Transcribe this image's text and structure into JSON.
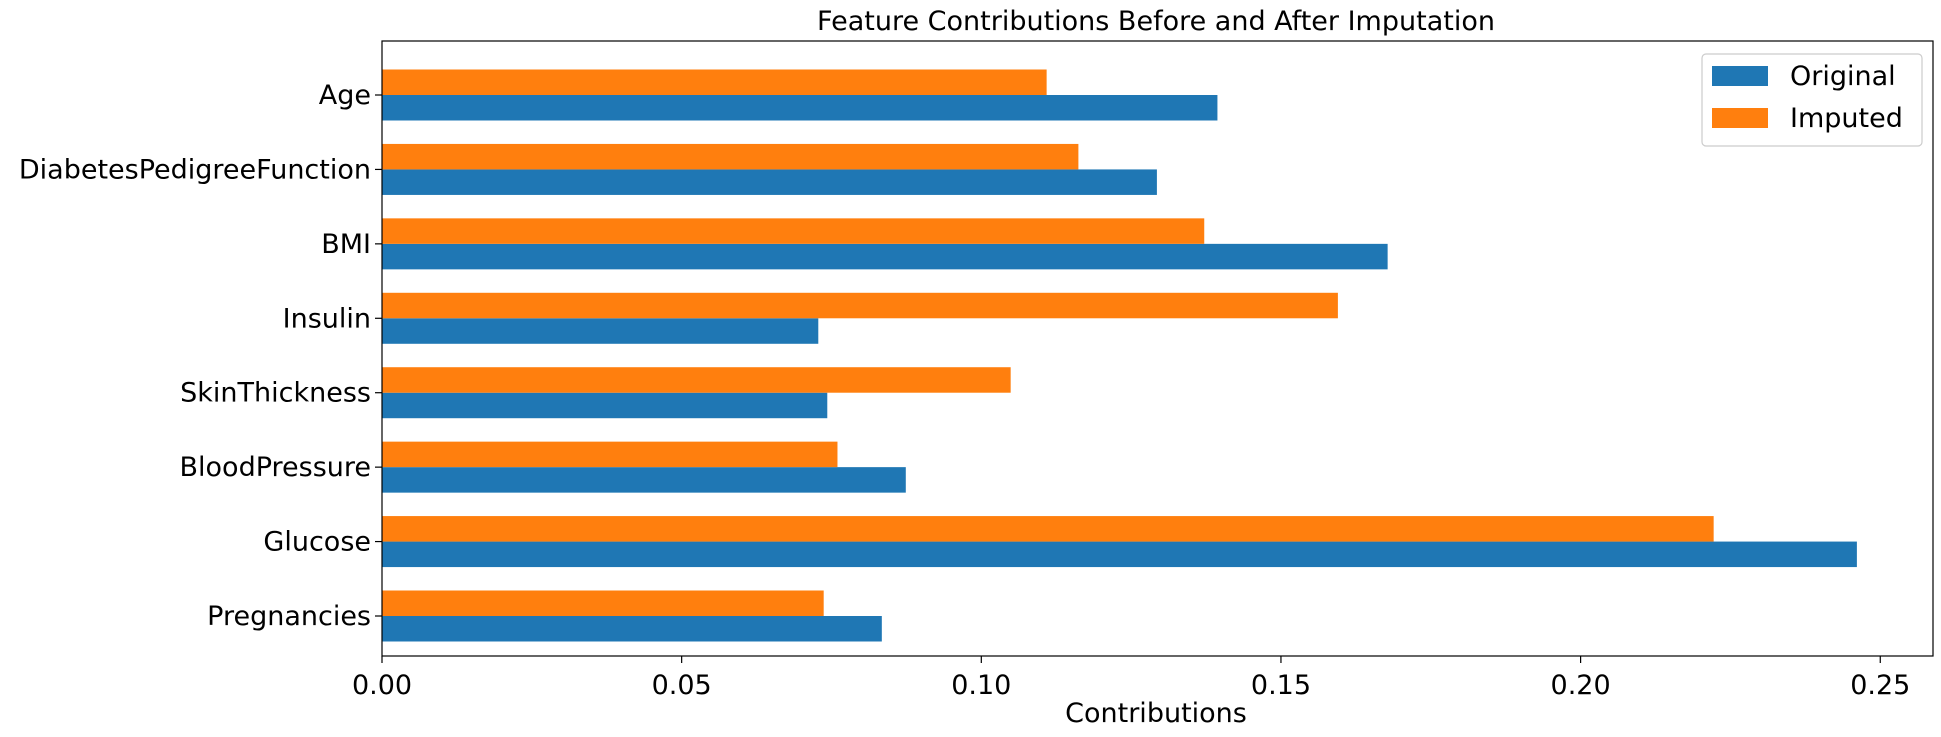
{
  "chart_data": {
    "type": "bar",
    "orientation": "horizontal",
    "title": "Feature Contributions Before and After Imputation",
    "xlabel": "Contributions",
    "ylabel": "",
    "categories": [
      "Pregnancies",
      "Glucose",
      "BloodPressure",
      "SkinThickness",
      "Insulin",
      "BMI",
      "DiabetesPedigreeFunction",
      "Age"
    ],
    "series": [
      {
        "name": "Original",
        "color": "#1f77b4",
        "values": [
          0.0834,
          0.2461,
          0.0874,
          0.0743,
          0.0728,
          0.1678,
          0.1293,
          0.1394
        ]
      },
      {
        "name": "Imputed",
        "color": "#ff7f0e",
        "values": [
          0.0737,
          0.2222,
          0.076,
          0.1049,
          0.1595,
          0.1372,
          0.1162,
          0.1109
        ]
      }
    ],
    "xlim": [
      0,
      0.2588
    ],
    "xticks": [
      0.0,
      0.05,
      0.1,
      0.15,
      0.2,
      0.25
    ],
    "xtick_labels": [
      "0.00",
      "0.05",
      "0.10",
      "0.15",
      "0.20",
      "0.25"
    ],
    "legend_position": "top-right",
    "grid": false
  }
}
